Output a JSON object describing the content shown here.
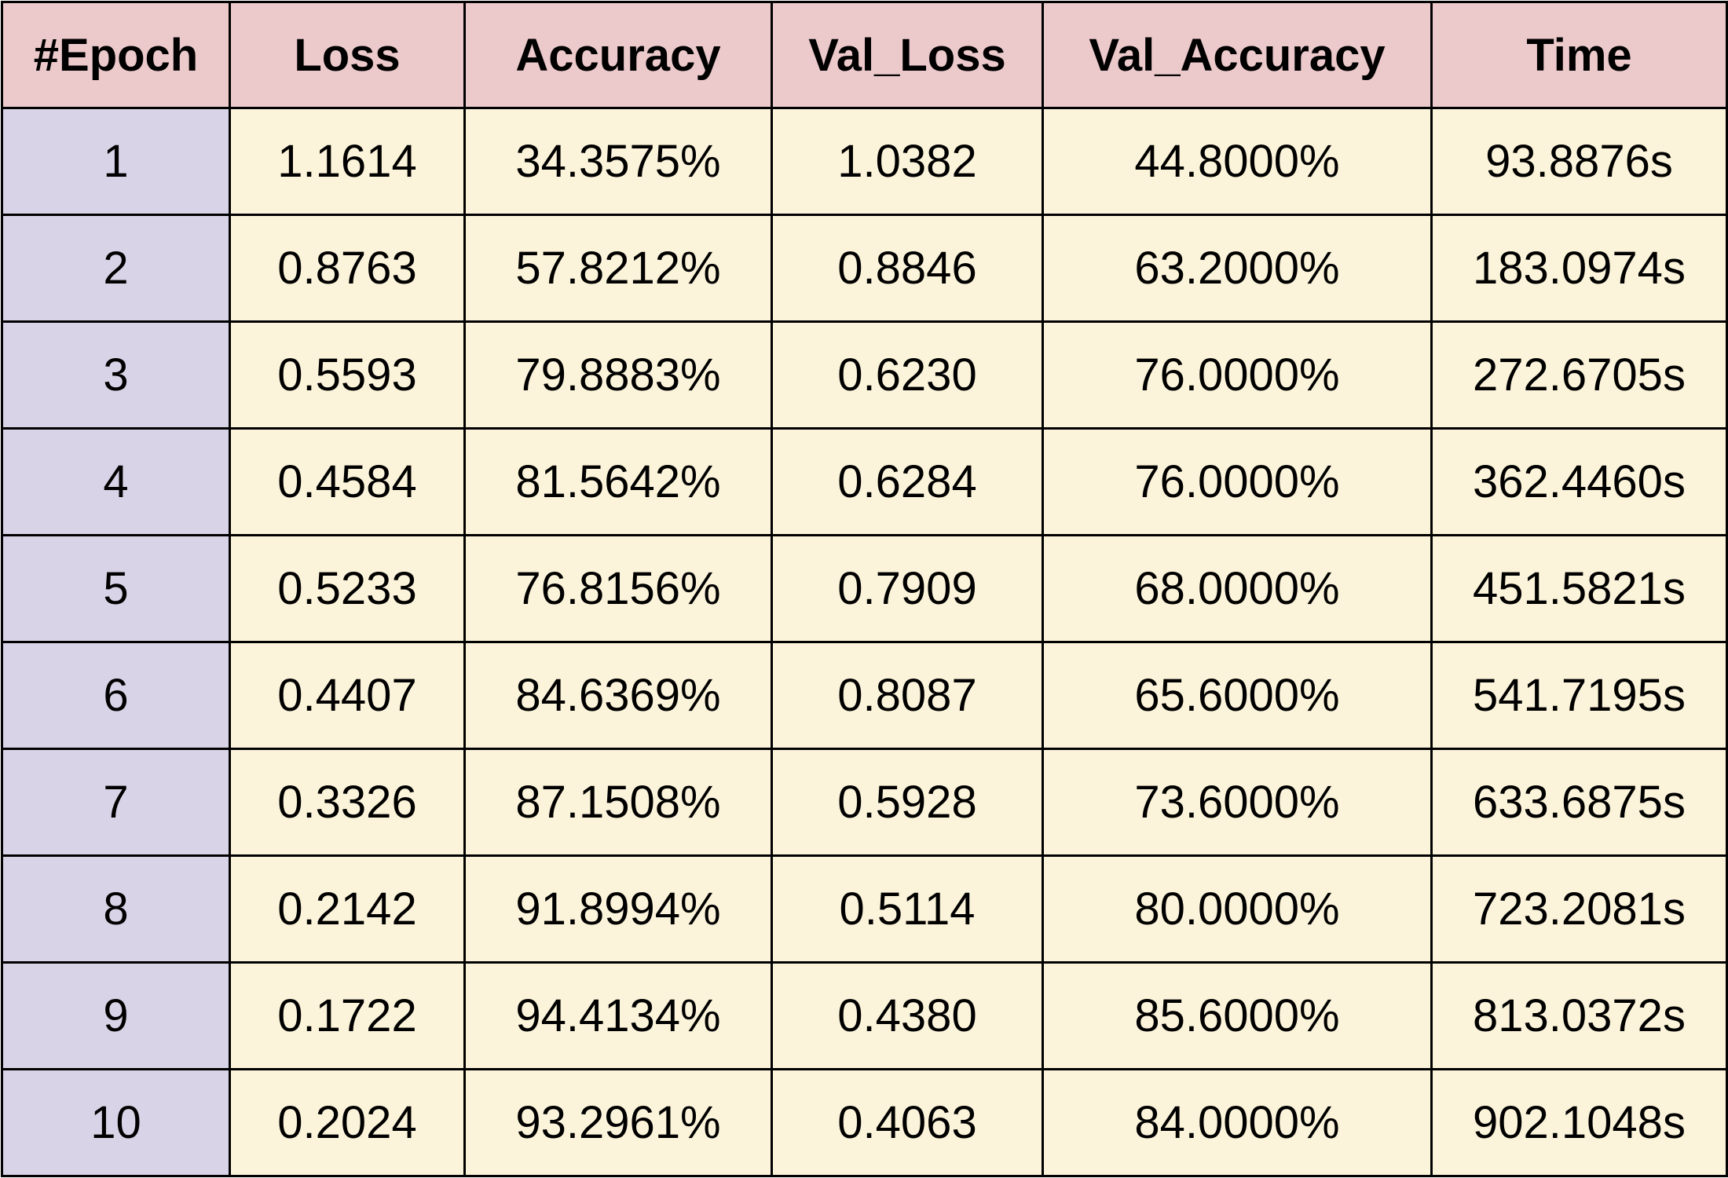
{
  "chart_data": {
    "type": "table",
    "columns": [
      "#Epoch",
      "Loss",
      "Accuracy",
      "Val_Loss",
      "Val_Accuracy",
      "Time"
    ],
    "rows": [
      [
        "1",
        "1.1614",
        "34.3575%",
        "1.0382",
        "44.8000%",
        "93.8876s"
      ],
      [
        "2",
        "0.8763",
        "57.8212%",
        "0.8846",
        "63.2000%",
        "183.0974s"
      ],
      [
        "3",
        "0.5593",
        "79.8883%",
        "0.6230",
        "76.0000%",
        "272.6705s"
      ],
      [
        "4",
        "0.4584",
        "81.5642%",
        "0.6284",
        "76.0000%",
        "362.4460s"
      ],
      [
        "5",
        "0.5233",
        "76.8156%",
        "0.7909",
        "68.0000%",
        "451.5821s"
      ],
      [
        "6",
        "0.4407",
        "84.6369%",
        "0.8087",
        "65.6000%",
        "541.7195s"
      ],
      [
        "7",
        "0.3326",
        "87.1508%",
        "0.5928",
        "73.6000%",
        "633.6875s"
      ],
      [
        "8",
        "0.2142",
        "91.8994%",
        "0.5114",
        "80.0000%",
        "723.2081s"
      ],
      [
        "9",
        "0.1722",
        "94.4134%",
        "0.4380",
        "85.6000%",
        "813.0372s"
      ],
      [
        "10",
        "0.2024",
        "93.2961%",
        "0.4063",
        "84.0000%",
        "902.1048s"
      ]
    ],
    "colors": {
      "header_bg": "#ecc9cb",
      "epoch_column_bg": "#d8d3e6",
      "cell_bg": "#fcf4da",
      "border": "#000000"
    }
  }
}
